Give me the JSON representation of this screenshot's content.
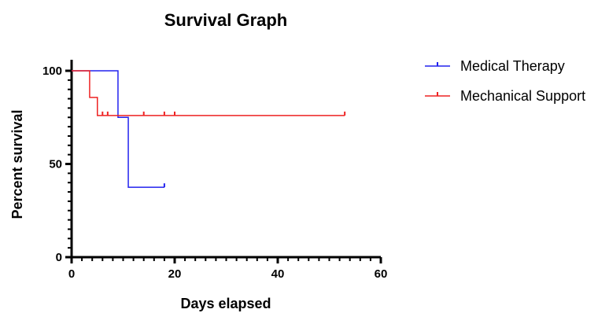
{
  "chart_data": {
    "type": "line",
    "subtype": "kaplan-meier survival curve",
    "title": "Survival Graph",
    "xlabel": "Days elapsed",
    "ylabel": "Percent survival",
    "xlim": [
      0,
      60
    ],
    "ylim": [
      0,
      100
    ],
    "x_ticks": [
      0,
      20,
      40,
      60
    ],
    "y_ticks": [
      0,
      50,
      100
    ],
    "grid": false,
    "legend_position": "top-right",
    "series": [
      {
        "name": "Medical Therapy",
        "color": "#2222ee",
        "steps": [
          [
            0,
            100
          ],
          [
            9,
            75
          ],
          [
            11,
            37.5
          ]
        ],
        "end_x": 18,
        "censored": [
          [
            18,
            37.5
          ]
        ]
      },
      {
        "name": "Mechanical Support",
        "color": "#ee2222",
        "steps": [
          [
            0,
            100
          ],
          [
            3.5,
            85.7
          ],
          [
            5,
            76
          ]
        ],
        "end_x": 53,
        "censored": [
          [
            6,
            76
          ],
          [
            7,
            76
          ],
          [
            14,
            76
          ],
          [
            18,
            76
          ],
          [
            20,
            76
          ],
          [
            53,
            76
          ]
        ]
      }
    ]
  }
}
